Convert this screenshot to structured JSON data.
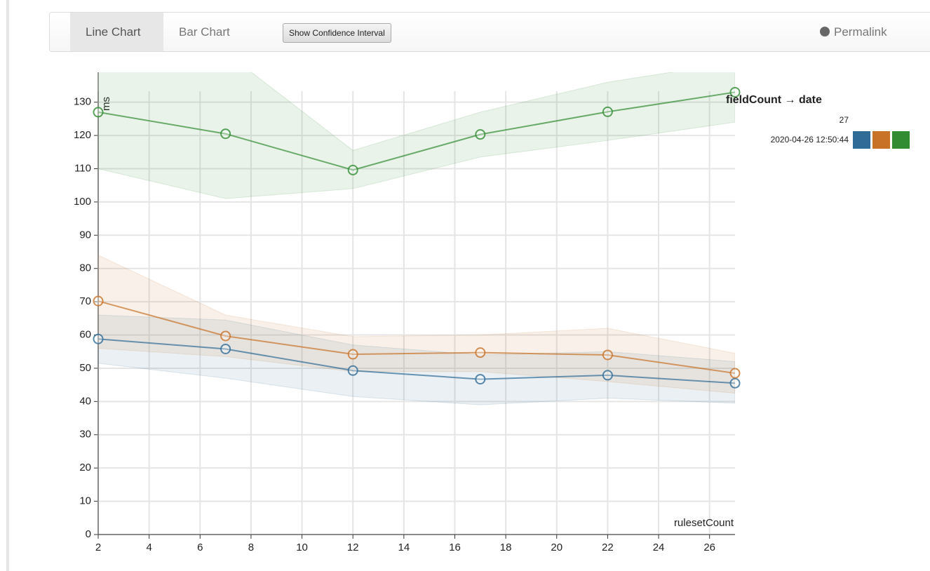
{
  "toolbar": {
    "tabs": [
      "Line Chart",
      "Bar Chart"
    ],
    "button": "Show Confidence Interval",
    "permalink": "Permalink"
  },
  "chart_data": {
    "type": "line",
    "x_label": "rulesetCount",
    "y_label": "ms",
    "x": [
      2,
      7,
      12,
      17,
      22,
      27
    ],
    "xlim": [
      2,
      27
    ],
    "xticks": [
      2,
      4,
      6,
      8,
      10,
      12,
      14,
      16,
      18,
      20,
      22,
      24,
      26
    ],
    "ylim": [
      0,
      139
    ],
    "yticks": [
      0,
      10,
      20,
      30,
      40,
      50,
      60,
      70,
      80,
      90,
      100,
      110,
      120,
      130
    ],
    "grid": true,
    "legend": {
      "title": "fieldCount → date",
      "column": "27",
      "row": "2020-04-26 12:50:44"
    },
    "series": [
      {
        "color": "#2f6b96",
        "values": [
          58.8,
          55.8,
          49.3,
          46.7,
          47.9,
          45.5
        ],
        "lower": [
          51.5,
          47,
          41.5,
          39,
          41,
          39.5
        ],
        "upper": [
          66,
          64.5,
          57,
          54,
          55,
          52
        ]
      },
      {
        "color": "#c87227",
        "values": [
          70.2,
          59.7,
          54.2,
          54.7,
          54,
          48.5
        ],
        "lower": [
          56,
          53.5,
          49,
          49,
          46,
          42.5
        ],
        "upper": [
          84,
          66,
          59.5,
          60,
          62,
          54.5
        ]
      },
      {
        "color": "#318c32",
        "values": [
          127,
          120.5,
          109.6,
          120.3,
          127.1,
          133
        ],
        "lower": [
          110,
          101,
          104,
          113.5,
          118.5,
          124
        ],
        "upper": [
          150,
          145,
          115.5,
          127,
          136,
          142
        ]
      }
    ]
  }
}
